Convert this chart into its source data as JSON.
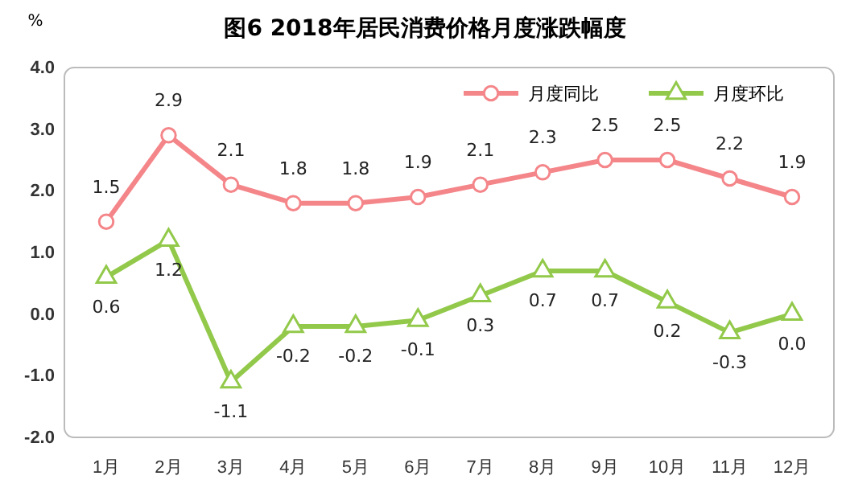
{
  "chart_data": {
    "type": "line",
    "title": "图6  2018年居民消费价格月度涨跌幅度",
    "ylabel": "%",
    "categories": [
      "1月",
      "2月",
      "3月",
      "4月",
      "5月",
      "6月",
      "7月",
      "8月",
      "9月",
      "10月",
      "11月",
      "12月"
    ],
    "series": [
      {
        "name": "月度同比",
        "color": "#f4868a",
        "marker": "circle",
        "values": [
          1.5,
          2.9,
          2.1,
          1.8,
          1.8,
          1.9,
          2.1,
          2.3,
          2.5,
          2.5,
          2.2,
          1.9
        ],
        "value_labels": [
          "1.5",
          "2.9",
          "2.1",
          "1.8",
          "1.8",
          "1.9",
          "2.1",
          "2.3",
          "2.5",
          "2.5",
          "2.2",
          "1.9"
        ]
      },
      {
        "name": "月度环比",
        "color": "#92c94a",
        "marker": "triangle",
        "values": [
          0.6,
          1.2,
          -1.1,
          -0.2,
          -0.2,
          -0.1,
          0.3,
          0.7,
          0.7,
          0.2,
          -0.3,
          0.0
        ],
        "value_labels": [
          "0.6",
          "1.2",
          "-1.1",
          "-0.2",
          "-0.2",
          "-0.1",
          "0.3",
          "0.7",
          "0.7",
          "0.2",
          "-0.3",
          "0.0"
        ]
      }
    ],
    "ylim": [
      -2,
      4
    ],
    "yticks": [
      {
        "value": 4,
        "label": "4.0"
      },
      {
        "value": 3,
        "label": "3.0"
      },
      {
        "value": 2,
        "label": "2.0"
      },
      {
        "value": 1,
        "label": "1.0"
      },
      {
        "value": 0,
        "label": "0.0"
      },
      {
        "value": -1,
        "label": "-1.0"
      },
      {
        "value": -2,
        "label": "-2.0"
      }
    ],
    "legend": "top right",
    "line_style": "solid"
  }
}
